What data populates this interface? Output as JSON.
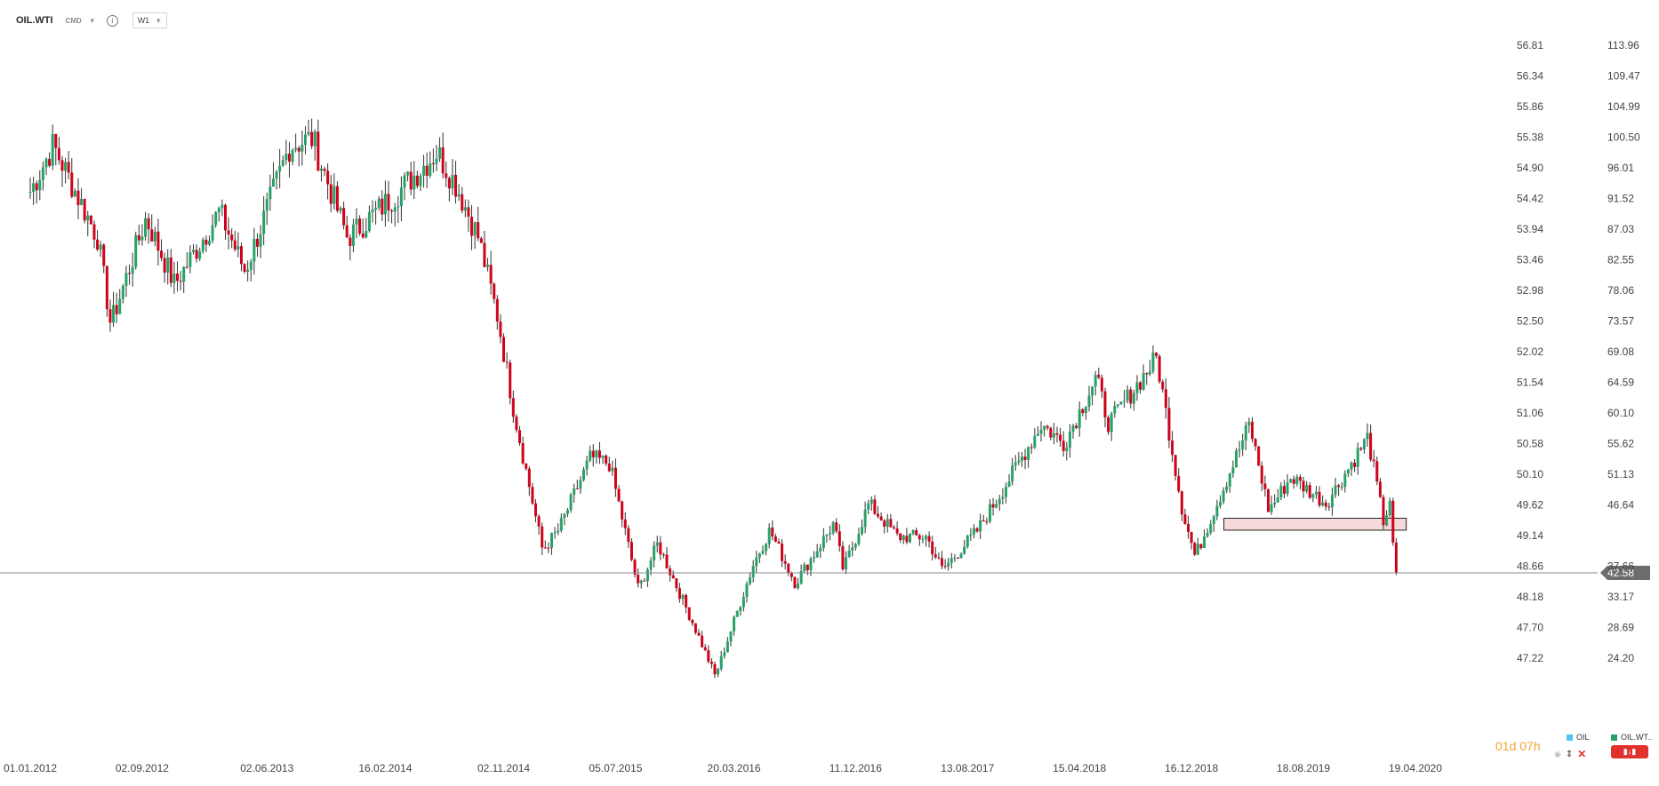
{
  "header": {
    "symbol": "OIL.WTI",
    "instrument_type": "CMD",
    "timeframe": "W1"
  },
  "timer": {
    "days": "01",
    "days_unit": "d",
    "hours": "07",
    "hours_unit": "h"
  },
  "legend": {
    "items": [
      {
        "label": "OIL",
        "color": "#4fc3f7"
      },
      {
        "label": "OIL.WT..",
        "color": "#26a269"
      }
    ]
  },
  "colors": {
    "up": "#26a269",
    "down": "#d0021b",
    "current_line": "#8a8a8a",
    "current_badge": "#6d6d6d",
    "zone_fill": "#f6dada",
    "zone_border": "#222222"
  },
  "chart_data": {
    "type": "candlestick",
    "timeframe": "W1",
    "x_ticks": [
      "01.01.2012",
      "02.09.2012",
      "02.06.2013",
      "16.02.2014",
      "02.11.2014",
      "05.07.2015",
      "20.03.2016",
      "11.12.2016",
      "13.08.2017",
      "15.04.2018",
      "16.12.2018",
      "18.08.2019",
      "19.04.2020"
    ],
    "y_ticks_left": [
      "56.81",
      "56.34",
      "55.86",
      "55.38",
      "54.90",
      "54.42",
      "53.94",
      "53.46",
      "52.98",
      "52.50",
      "52.02",
      "51.54",
      "51.06",
      "50.58",
      "50.10",
      "49.62",
      "49.14",
      "48.66",
      "48.18",
      "47.70",
      "47.22"
    ],
    "y_ticks_right": [
      "113.96",
      "109.47",
      "104.99",
      "100.50",
      "96.01",
      "91.52",
      "87.03",
      "82.55",
      "78.06",
      "73.57",
      "69.08",
      "64.59",
      "60.10",
      "55.62",
      "51.13",
      "46.64",
      "42.58",
      "37.66",
      "33.17",
      "28.69",
      "24.20"
    ],
    "ylim": [
      20.5,
      121.5
    ],
    "current_price": "42.58",
    "support_zone": {
      "from": "25.02.2019",
      "to": "30.03.2020",
      "low": 49.0,
      "high": 50.8
    },
    "path": [
      {
        "date": "01.01.2012",
        "value": 100
      },
      {
        "date": "20.02.2012",
        "value": 107
      },
      {
        "date": "28.05.2012",
        "value": 93
      },
      {
        "date": "25.06.2012",
        "value": 80
      },
      {
        "date": "10.09.2012",
        "value": 96
      },
      {
        "date": "12.11.2012",
        "value": 86
      },
      {
        "date": "18.02.2013",
        "value": 97
      },
      {
        "date": "15.04.2013",
        "value": 88
      },
      {
        "date": "22.07.2013",
        "value": 107
      },
      {
        "date": "09.09.2013",
        "value": 108
      },
      {
        "date": "25.11.2013",
        "value": 93
      },
      {
        "date": "17.03.2014",
        "value": 100
      },
      {
        "date": "09.06.2014",
        "value": 106
      },
      {
        "date": "21.07.2014",
        "value": 101
      },
      {
        "date": "08.09.2014",
        "value": 93
      },
      {
        "date": "20.10.2014",
        "value": 81
      },
      {
        "date": "24.11.2014",
        "value": 67
      },
      {
        "date": "26.01.2015",
        "value": 46
      },
      {
        "date": "02.03.2015",
        "value": 49
      },
      {
        "date": "11.05.2015",
        "value": 60
      },
      {
        "date": "22.06.2015",
        "value": 59
      },
      {
        "date": "24.08.2015",
        "value": 40
      },
      {
        "date": "05.10.2015",
        "value": 47
      },
      {
        "date": "21.12.2015",
        "value": 35
      },
      {
        "date": "08.02.2016",
        "value": 27
      },
      {
        "date": "02.05.2016",
        "value": 44
      },
      {
        "date": "06.06.2016",
        "value": 49
      },
      {
        "date": "01.08.2016",
        "value": 41
      },
      {
        "date": "24.10.2016",
        "value": 50
      },
      {
        "date": "14.11.2016",
        "value": 43
      },
      {
        "date": "09.01.2017",
        "value": 53
      },
      {
        "date": "13.03.2017",
        "value": 48
      },
      {
        "date": "15.05.2017",
        "value": 48
      },
      {
        "date": "19.06.2017",
        "value": 43
      },
      {
        "date": "04.09.2017",
        "value": 49
      },
      {
        "date": "06.11.2017",
        "value": 56
      },
      {
        "date": "22.01.2018",
        "value": 65
      },
      {
        "date": "12.03.2018",
        "value": 62
      },
      {
        "date": "21.05.2018",
        "value": 72
      },
      {
        "date": "18.06.2018",
        "value": 65
      },
      {
        "date": "01.10.2018",
        "value": 75
      },
      {
        "date": "26.11.2018",
        "value": 52
      },
      {
        "date": "24.12.2018",
        "value": 45
      },
      {
        "date": "22.04.2019",
        "value": 65
      },
      {
        "date": "03.06.2019",
        "value": 52
      },
      {
        "date": "22.07.2019",
        "value": 57
      },
      {
        "date": "07.10.2019",
        "value": 53
      },
      {
        "date": "06.01.2020",
        "value": 63
      },
      {
        "date": "10.02.2020",
        "value": 50
      },
      {
        "date": "24.02.2020",
        "value": 54
      },
      {
        "date": "02.03.2020",
        "value": 45
      },
      {
        "date": "09.03.2020",
        "value": 42.58
      }
    ]
  }
}
